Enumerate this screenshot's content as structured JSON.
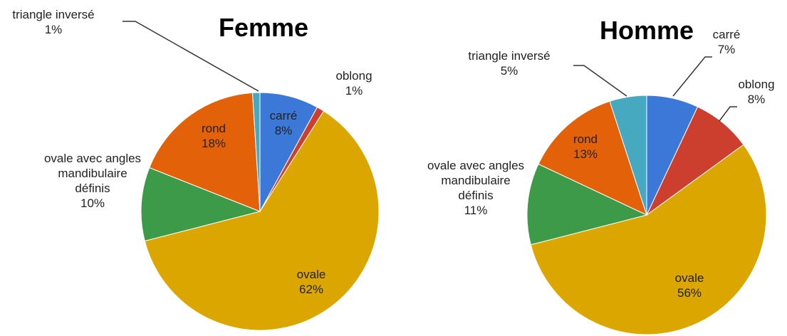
{
  "chart_data": [
    {
      "type": "pie",
      "title": "Femme",
      "categories": [
        "carré",
        "oblong",
        "ovale",
        "ovale avec angles mandibulaire définis",
        "rond",
        "triangle inversé"
      ],
      "values": [
        8,
        1,
        62,
        10,
        18,
        1
      ],
      "value_labels": [
        "8%",
        "1%",
        "62%",
        "10%",
        "18%",
        "1%"
      ],
      "colors": [
        "#3c78d8",
        "#cc3f2f",
        "#dba600",
        "#3d9a48",
        "#e36209",
        "#47a9bf"
      ]
    },
    {
      "type": "pie",
      "title": "Homme",
      "categories": [
        "carré",
        "oblong",
        "ovale",
        "ovale avec angles mandibulaire définis",
        "rond",
        "triangle inversé"
      ],
      "values": [
        7,
        8,
        56,
        11,
        13,
        5
      ],
      "value_labels": [
        "7%",
        "8%",
        "56%",
        "11%",
        "13%",
        "5%"
      ],
      "colors": [
        "#3c78d8",
        "#cc3f2f",
        "#dba600",
        "#3d9a48",
        "#e36209",
        "#47a9bf"
      ]
    }
  ]
}
